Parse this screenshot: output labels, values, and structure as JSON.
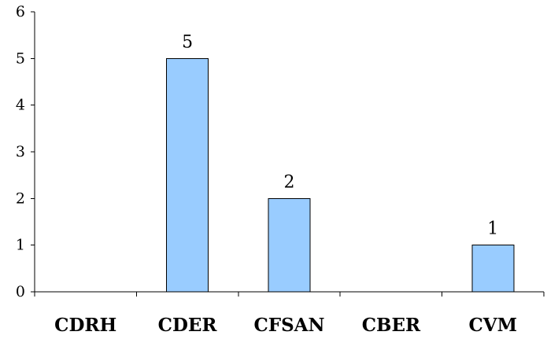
{
  "chart_data": {
    "type": "bar",
    "title": "",
    "xlabel": "",
    "ylabel": "",
    "categories": [
      "CDRH",
      "CDER",
      "CFSAN",
      "CBER",
      "CVM"
    ],
    "values": [
      0,
      5,
      2,
      0,
      1
    ],
    "data_labels": [
      "",
      "5",
      "2",
      "",
      "1"
    ],
    "ylim": [
      0,
      6
    ],
    "y_ticks": [
      "0",
      "1",
      "2",
      "3",
      "4",
      "5",
      "6"
    ],
    "grid": false,
    "legend": "none",
    "colors": {
      "bar_fill": "#99CCFF",
      "bar_stroke": "#000000",
      "axis": "#000000"
    }
  }
}
